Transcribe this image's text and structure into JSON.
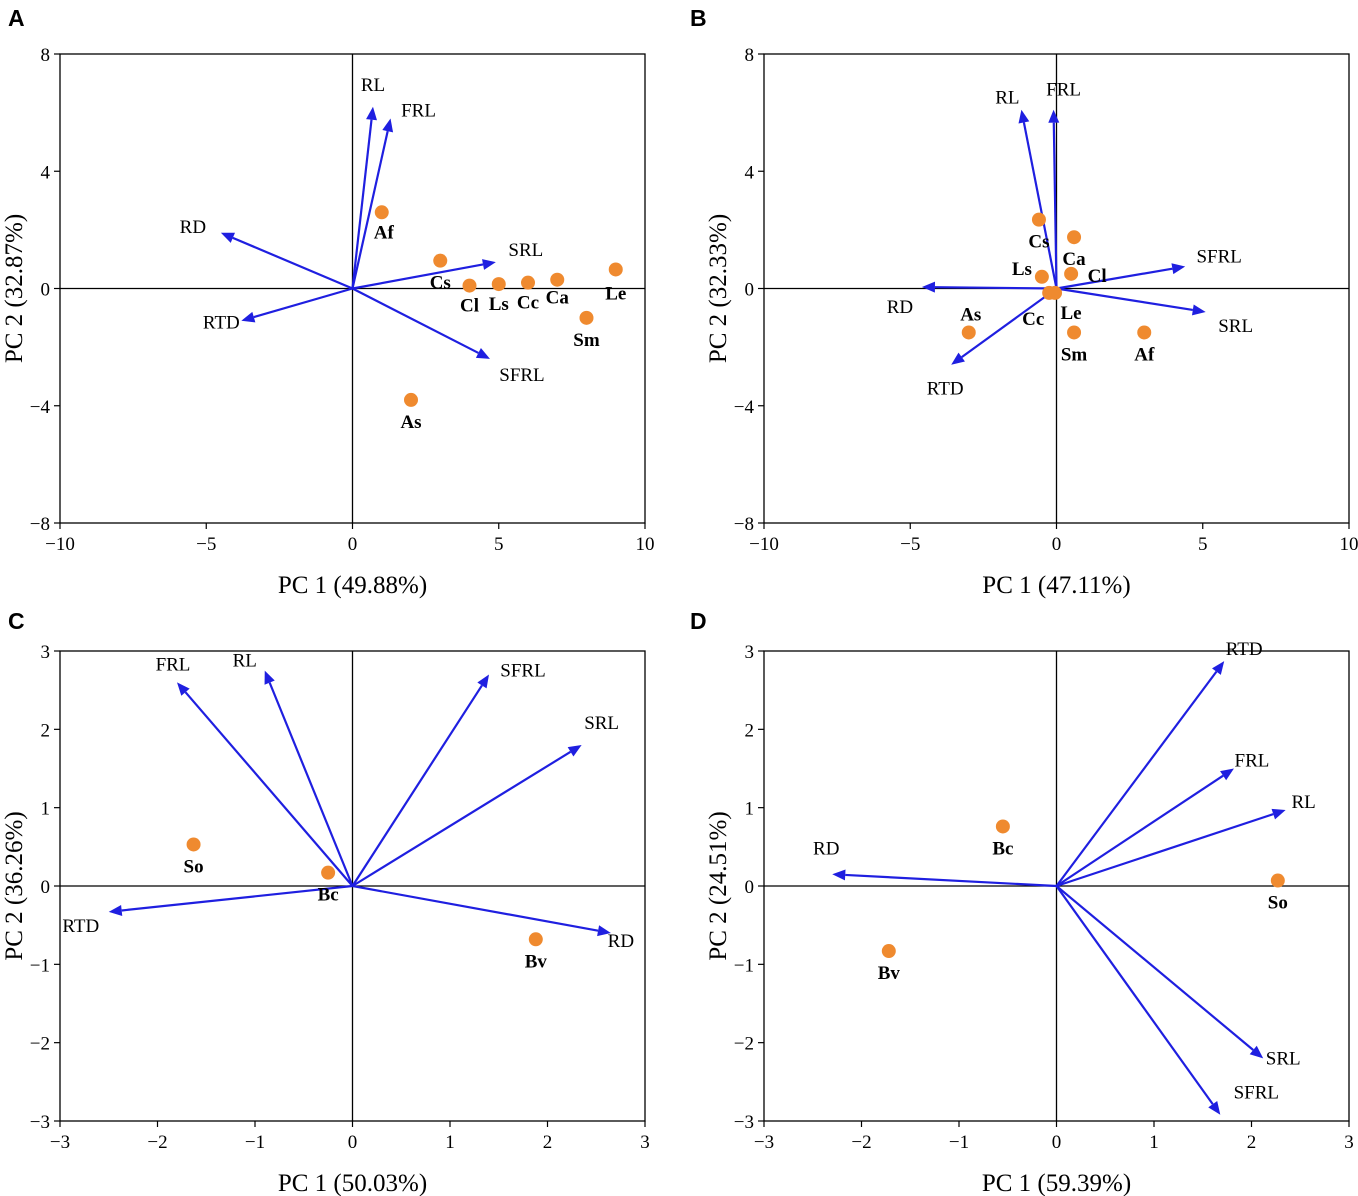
{
  "colors": {
    "arrow": "#1f1fe0",
    "point": "#ef8a2f",
    "axis": "#000000"
  },
  "chart_data": [
    {
      "type": "scatter",
      "panel": "A",
      "xlabel": "PC 1 (49.88%)",
      "ylabel": "PC 2 (32.87%)",
      "xlim": [
        -10,
        10
      ],
      "ylim": [
        -8,
        8
      ],
      "xticks": [
        -10,
        -5,
        0,
        5,
        10
      ],
      "yticks": [
        -8,
        -4,
        0,
        4,
        8
      ],
      "xtick_labels": [
        "−10",
        "−5",
        "0",
        "5",
        "10"
      ],
      "ytick_labels": [
        "−8",
        "−4",
        "0",
        "4",
        "8"
      ],
      "loadings": [
        {
          "name": "RL",
          "x": 0.7,
          "y": 6.2
        },
        {
          "name": "FRL",
          "x": 1.3,
          "y": 5.8
        },
        {
          "name": "RD",
          "x": -4.5,
          "y": 1.9
        },
        {
          "name": "SRL",
          "x": 4.9,
          "y": 0.9
        },
        {
          "name": "RTD",
          "x": -3.8,
          "y": -1.1
        },
        {
          "name": "SFRL",
          "x": 4.7,
          "y": -2.4
        }
      ],
      "samples": [
        {
          "name": "Af",
          "x": 1.0,
          "y": 2.6
        },
        {
          "name": "Cs",
          "x": 3.0,
          "y": 0.95
        },
        {
          "name": "Cl",
          "x": 4.0,
          "y": 0.1
        },
        {
          "name": "Ls",
          "x": 5.0,
          "y": 0.15
        },
        {
          "name": "Cc",
          "x": 6.0,
          "y": 0.2
        },
        {
          "name": "Ca",
          "x": 7.0,
          "y": 0.3
        },
        {
          "name": "Le",
          "x": 9.0,
          "y": 0.65
        },
        {
          "name": "Sm",
          "x": 8.0,
          "y": -1.0
        },
        {
          "name": "As",
          "x": 2.0,
          "y": -3.8
        }
      ]
    },
    {
      "type": "scatter",
      "panel": "B",
      "xlabel": "PC 1 (47.11%)",
      "ylabel": "PC 2 (32.33%)",
      "xlim": [
        -10,
        10
      ],
      "ylim": [
        -8,
        8
      ],
      "xticks": [
        -10,
        -5,
        0,
        5,
        10
      ],
      "yticks": [
        -8,
        -4,
        0,
        4,
        8
      ],
      "xtick_labels": [
        "−10",
        "−5",
        "0",
        "5",
        "10"
      ],
      "ytick_labels": [
        "−8",
        "−4",
        "0",
        "4",
        "8"
      ],
      "loadings": [
        {
          "name": "RL",
          "x": -1.2,
          "y": 6.1
        },
        {
          "name": "FRL",
          "x": -0.1,
          "y": 6.1
        },
        {
          "name": "RD",
          "x": -4.6,
          "y": 0.05
        },
        {
          "name": "SFRL",
          "x": 4.4,
          "y": 0.75
        },
        {
          "name": "SRL",
          "x": 5.1,
          "y": -0.8
        },
        {
          "name": "RTD",
          "x": -3.6,
          "y": -2.6
        }
      ],
      "samples": [
        {
          "name": "Cs",
          "x": -0.6,
          "y": 2.35
        },
        {
          "name": "Ca",
          "x": 0.6,
          "y": 1.75
        },
        {
          "name": "Ls",
          "x": -0.5,
          "y": 0.4
        },
        {
          "name": "Cl",
          "x": 0.5,
          "y": 0.5
        },
        {
          "name": "Cc",
          "x": -0.25,
          "y": -0.15
        },
        {
          "name": "Le",
          "x": -0.05,
          "y": -0.15
        },
        {
          "name": "As",
          "x": -3.0,
          "y": -1.5
        },
        {
          "name": "Sm",
          "x": 0.6,
          "y": -1.5
        },
        {
          "name": "Af",
          "x": 3.0,
          "y": -1.5
        }
      ]
    },
    {
      "type": "scatter",
      "panel": "C",
      "xlabel": "PC 1 (50.03%)",
      "ylabel": "PC 2 (36.26%)",
      "xlim": [
        -3,
        3
      ],
      "ylim": [
        -3,
        3
      ],
      "xticks": [
        -3,
        -2,
        -1,
        0,
        1,
        2,
        3
      ],
      "yticks": [
        -3,
        -2,
        -1,
        0,
        1,
        2,
        3
      ],
      "xtick_labels": [
        "−3",
        "−2",
        "−1",
        "0",
        "1",
        "2",
        "3"
      ],
      "ytick_labels": [
        "−3",
        "−2",
        "−1",
        "0",
        "1",
        "2",
        "3"
      ],
      "loadings": [
        {
          "name": "FRL",
          "x": -1.8,
          "y": 2.6
        },
        {
          "name": "RL",
          "x": -0.9,
          "y": 2.75
        },
        {
          "name": "SFRL",
          "x": 1.4,
          "y": 2.7
        },
        {
          "name": "SRL",
          "x": 2.35,
          "y": 1.8
        },
        {
          "name": "RTD",
          "x": -2.5,
          "y": -0.33
        },
        {
          "name": "RD",
          "x": 2.65,
          "y": -0.6
        }
      ],
      "samples": [
        {
          "name": "So",
          "x": -1.63,
          "y": 0.53
        },
        {
          "name": "Bc",
          "x": -0.25,
          "y": 0.17
        },
        {
          "name": "Bv",
          "x": 1.88,
          "y": -0.68
        }
      ]
    },
    {
      "type": "scatter",
      "panel": "D",
      "xlabel": "PC 1 (59.39%)",
      "ylabel": "PC 2 (24.51%)",
      "xlim": [
        -3,
        3
      ],
      "ylim": [
        -3,
        3
      ],
      "xticks": [
        -3,
        -2,
        -1,
        0,
        1,
        2,
        3
      ],
      "yticks": [
        -3,
        -2,
        -1,
        0,
        1,
        2,
        3
      ],
      "xtick_labels": [
        "−3",
        "−2",
        "−1",
        "0",
        "1",
        "2",
        "3"
      ],
      "ytick_labels": [
        "−3",
        "−2",
        "−1",
        "0",
        "1",
        "2",
        "3"
      ],
      "loadings": [
        {
          "name": "RTD",
          "x": 1.72,
          "y": 2.87
        },
        {
          "name": "FRL",
          "x": 1.82,
          "y": 1.5
        },
        {
          "name": "RL",
          "x": 2.35,
          "y": 0.97
        },
        {
          "name": "RD",
          "x": -2.3,
          "y": 0.15
        },
        {
          "name": "SRL",
          "x": 2.12,
          "y": -2.2
        },
        {
          "name": "SFRL",
          "x": 1.68,
          "y": -2.92
        }
      ],
      "samples": [
        {
          "name": "Bc",
          "x": -0.55,
          "y": 0.76
        },
        {
          "name": "So",
          "x": 2.27,
          "y": 0.07
        },
        {
          "name": "Bv",
          "x": -1.72,
          "y": -0.83
        }
      ]
    }
  ]
}
